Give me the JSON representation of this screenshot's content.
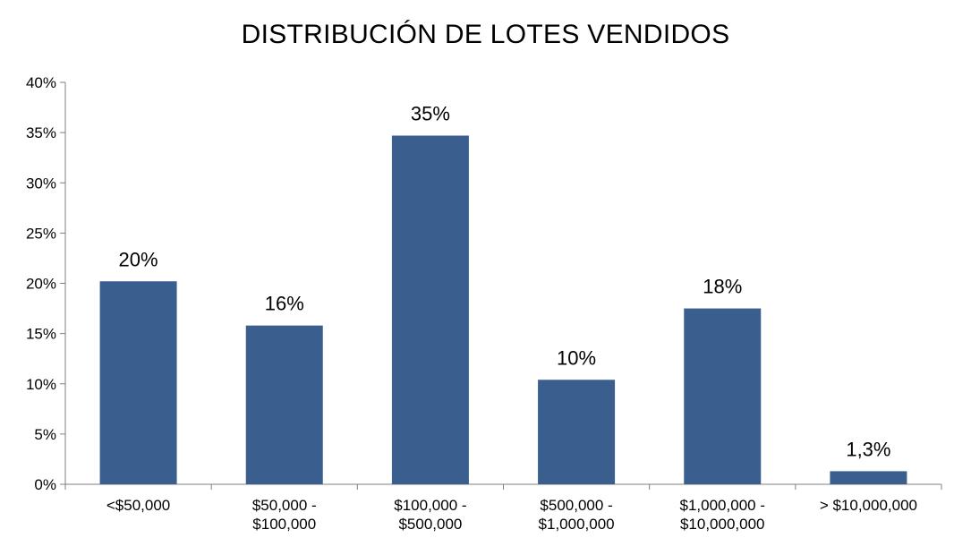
{
  "chart_data": {
    "type": "bar",
    "title": "DISTRIBUCIÓN DE LOTES VENDIDOS",
    "xlabel": "",
    "ylabel": "",
    "categories": [
      [
        "<$50,000"
      ],
      [
        "$50,000 -",
        "$100,000"
      ],
      [
        "$100,000 -",
        "$500,000"
      ],
      [
        "$500,000 -",
        "$1,000,000"
      ],
      [
        "$1,000,000 -",
        "$10,000,000"
      ],
      [
        "> $10,000,000"
      ]
    ],
    "values": [
      20.2,
      15.8,
      34.7,
      10.4,
      17.5,
      1.3
    ],
    "data_labels": [
      "20%",
      "16%",
      "35%",
      "10%",
      "18%",
      "1,3%"
    ],
    "y_ticks": [
      0,
      5,
      10,
      15,
      20,
      25,
      30,
      35,
      40
    ],
    "y_tick_labels": [
      "0%",
      "5%",
      "10%",
      "15%",
      "20%",
      "25%",
      "30%",
      "35%",
      "40%"
    ],
    "ylim": [
      0,
      40
    ],
    "grid": false,
    "legend": "none",
    "bar_color": "#3a5f8f"
  }
}
